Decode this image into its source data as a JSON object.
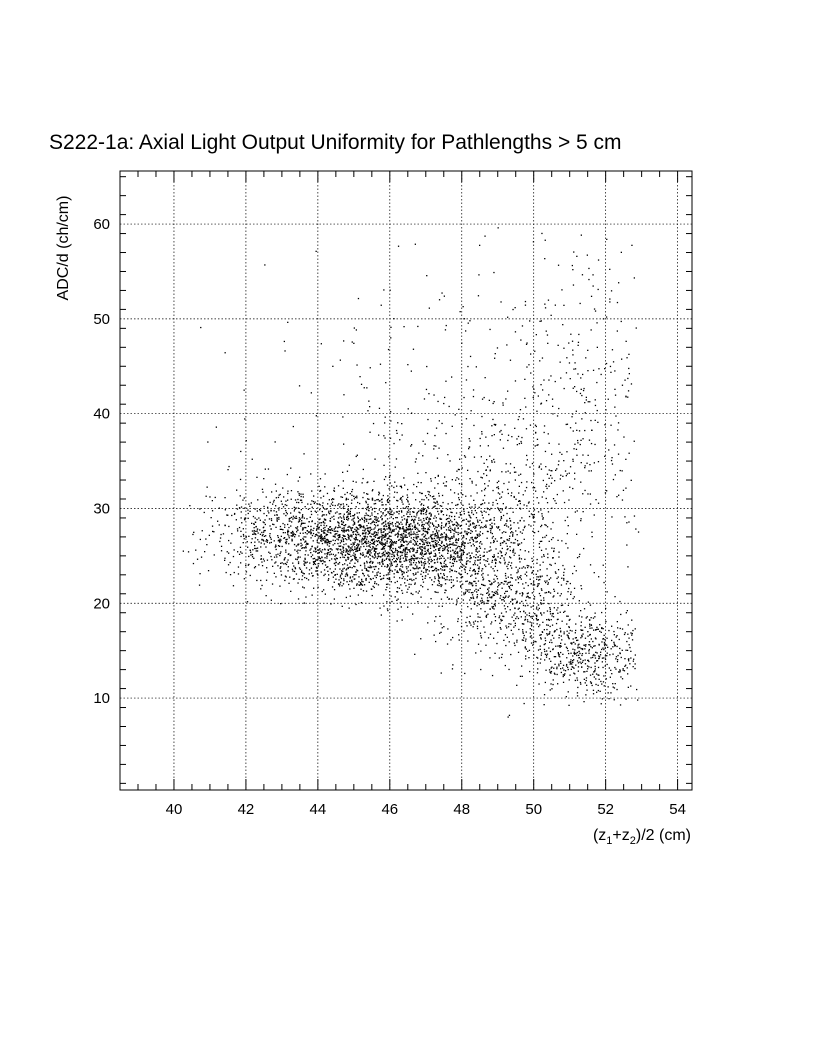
{
  "chart_data": {
    "type": "scatter",
    "title": "S222-1a: Axial Light Output Uniformity for Pathlengths > 5 cm",
    "xlabel": "(z1+z2)/2 (cm)",
    "ylabel": "ADC/d (ch/cm)",
    "xlabel_parts": {
      "open": "(z",
      "sub1": "1",
      "plus": "+z",
      "sub2": "2",
      "close": ")/2 (cm)"
    },
    "xlim": [
      38.5,
      54.4
    ],
    "ylim": [
      0.3,
      65.6
    ],
    "xticks": [
      40,
      42,
      44,
      46,
      48,
      50,
      52,
      54
    ],
    "yticks": [
      10,
      20,
      30,
      40,
      50,
      60
    ],
    "xtick_labels": [
      "40",
      "42",
      "44",
      "46",
      "48",
      "50",
      "52",
      "54"
    ],
    "ytick_labels": [
      "10",
      "20",
      "30",
      "40",
      "50",
      "60"
    ],
    "grid": true,
    "legend": "none",
    "marker_color": "#000000",
    "density_model": {
      "point_count": 5200,
      "core": [
        {
          "x": 45.6,
          "y": 26.5,
          "sx": 1.4,
          "sy": 2.6,
          "weight": 0.36
        },
        {
          "x": 43.2,
          "y": 27.5,
          "sx": 1.3,
          "sy": 2.6,
          "weight": 0.12
        },
        {
          "x": 47.8,
          "y": 26.0,
          "sx": 1.3,
          "sy": 3.0,
          "weight": 0.16
        },
        {
          "x": 49.5,
          "y": 20.0,
          "sx": 1.0,
          "sy": 3.0,
          "weight": 0.1
        },
        {
          "x": 51.5,
          "y": 14.5,
          "sx": 0.9,
          "sy": 2.3,
          "weight": 0.1
        },
        {
          "x": 49.5,
          "y": 33.0,
          "sx": 1.8,
          "sy": 4.5,
          "weight": 0.08
        },
        {
          "x": 48.0,
          "y": 42.0,
          "sx": 3.0,
          "sy": 7.5,
          "weight": 0.05
        },
        {
          "x": 51.5,
          "y": 46.0,
          "sx": 1.0,
          "sy": 8.0,
          "weight": 0.03
        }
      ]
    }
  }
}
